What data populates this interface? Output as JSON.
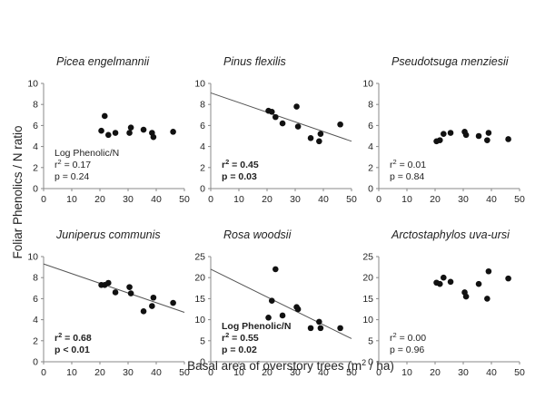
{
  "figure": {
    "ylabel": "Foliar Phenolics / N ratio",
    "xlabel_main": "Basal area of overstory trees (m",
    "xlabel_sup": "2",
    "xlabel_tail": " / ha)"
  },
  "chart_data": [
    {
      "type": "scatter",
      "title": "Picea engelmannii",
      "xlim": [
        0,
        50
      ],
      "ylim": [
        0,
        10
      ],
      "xticks": [
        0,
        10,
        20,
        30,
        40,
        50
      ],
      "yticks": [
        0,
        2,
        4,
        6,
        8,
        10
      ],
      "x": [
        20.5,
        21.7,
        23.0,
        25.5,
        30.5,
        31.0,
        35.5,
        38.5,
        39.0,
        46.0
      ],
      "y": [
        5.5,
        6.9,
        5.1,
        5.3,
        5.3,
        5.8,
        5.6,
        5.3,
        4.9,
        5.4
      ],
      "regression": null,
      "stats": {
        "label": "Log Phenolic/N",
        "r2": "0.17",
        "p": "0.24",
        "bold": false
      }
    },
    {
      "type": "scatter",
      "title": "Pinus flexilis",
      "xlim": [
        0,
        50
      ],
      "ylim": [
        0,
        10
      ],
      "xticks": [
        0,
        10,
        20,
        30,
        40,
        50
      ],
      "yticks": [
        0,
        2,
        4,
        6,
        8,
        10
      ],
      "x": [
        20.5,
        21.7,
        23.0,
        25.5,
        30.5,
        31.0,
        35.5,
        38.5,
        39.0,
        46.0
      ],
      "y": [
        7.4,
        7.3,
        6.8,
        6.2,
        7.8,
        5.9,
        4.8,
        4.5,
        5.2,
        6.1
      ],
      "regression": {
        "x": [
          0,
          50
        ],
        "y": [
          9.1,
          4.5
        ]
      },
      "stats": {
        "label": "",
        "r2": "0.45",
        "p": "0.03",
        "bold": true
      }
    },
    {
      "type": "scatter",
      "title": "Pseudotsuga menziesii",
      "xlim": [
        0,
        50
      ],
      "ylim": [
        0,
        10
      ],
      "xticks": [
        0,
        10,
        20,
        30,
        40,
        50
      ],
      "yticks": [
        0,
        2,
        4,
        6,
        8,
        10
      ],
      "x": [
        20.5,
        21.7,
        23.0,
        25.5,
        30.5,
        31.0,
        35.5,
        38.5,
        39.0,
        46.0
      ],
      "y": [
        4.5,
        4.6,
        5.2,
        5.3,
        5.4,
        5.1,
        5.0,
        4.6,
        5.3,
        4.7
      ],
      "regression": null,
      "stats": {
        "label": "",
        "r2": "0.01",
        "p": "0.84",
        "bold": false
      }
    },
    {
      "type": "scatter",
      "title": "Juniperus communis",
      "xlim": [
        0,
        50
      ],
      "ylim": [
        0,
        10
      ],
      "xticks": [
        0,
        10,
        20,
        30,
        40,
        50
      ],
      "yticks": [
        0,
        2,
        4,
        6,
        8,
        10
      ],
      "x": [
        20.5,
        21.7,
        23.0,
        25.5,
        30.5,
        31.0,
        35.5,
        38.5,
        39.0,
        46.0
      ],
      "y": [
        7.3,
        7.3,
        7.5,
        6.6,
        7.1,
        6.5,
        4.8,
        5.3,
        6.1,
        5.6
      ],
      "regression": {
        "x": [
          0,
          50
        ],
        "y": [
          9.3,
          4.7
        ]
      },
      "stats": {
        "label": "",
        "r2": "0.68",
        "p": "< 0.01",
        "bold": true
      }
    },
    {
      "type": "scatter",
      "title": "Rosa woodsii",
      "xlim": [
        0,
        50
      ],
      "ylim": [
        0,
        25
      ],
      "xticks": [
        0,
        10,
        20,
        30,
        40,
        50
      ],
      "yticks": [
        0,
        5,
        10,
        15,
        20,
        25
      ],
      "x": [
        20.5,
        21.7,
        23.0,
        25.5,
        30.5,
        31.0,
        35.5,
        38.5,
        39.0,
        46.0
      ],
      "y": [
        10.5,
        14.5,
        22.0,
        11.0,
        13.0,
        12.5,
        8.0,
        9.5,
        8.0,
        8.0
      ],
      "regression": {
        "x": [
          0,
          50
        ],
        "y": [
          22.0,
          5.5
        ]
      },
      "stats": {
        "label": "Log Phenolic/N",
        "r2": "0.55",
        "p": "0.02",
        "bold": true
      }
    },
    {
      "type": "scatter",
      "title": "Arctostaphylos uva-ursi",
      "xlim": [
        0,
        50
      ],
      "ylim": [
        0,
        25
      ],
      "xticks": [
        0,
        10,
        20,
        30,
        40,
        50
      ],
      "yticks": [
        0,
        5,
        10,
        15,
        20,
        25
      ],
      "x": [
        20.5,
        21.7,
        23.0,
        25.5,
        30.5,
        31.0,
        35.5,
        38.5,
        39.0,
        46.0
      ],
      "y": [
        18.8,
        18.5,
        20.0,
        19.0,
        16.5,
        15.5,
        18.5,
        15.0,
        21.5,
        19.8
      ],
      "regression": null,
      "stats": {
        "label": "",
        "r2": "0.00",
        "p": "0.96",
        "bold": false
      }
    }
  ]
}
